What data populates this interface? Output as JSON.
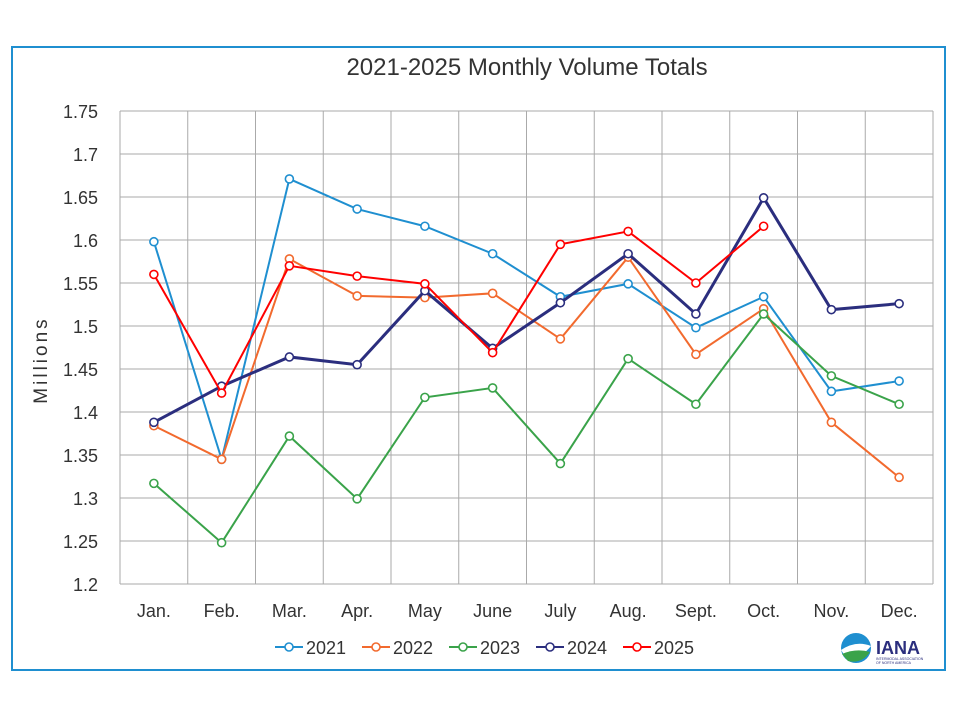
{
  "chart_data": {
    "type": "line",
    "title": "2021-2025 Monthly Volume Totals",
    "xlabel": "",
    "ylabel": "Millions",
    "ylim": [
      1.2,
      1.75
    ],
    "yticks": [
      "1.2",
      "1.25",
      "1.3",
      "1.35",
      "1.4",
      "1.45",
      "1.5",
      "1.55",
      "1.6",
      "1.65",
      "1.7",
      "1.75"
    ],
    "grid": true,
    "legend_position": "bottom",
    "categories": [
      "Jan.",
      "Feb.",
      "Mar.",
      "Apr.",
      "May",
      "June",
      "July",
      "Aug.",
      "Sept.",
      "Oct.",
      "Nov.",
      "Dec."
    ],
    "series": [
      {
        "name": "2021",
        "color": "#1f8fd0",
        "values": [
          1.598,
          1.345,
          1.671,
          1.636,
          1.616,
          1.584,
          1.534,
          1.549,
          1.498,
          1.534,
          1.424,
          1.436
        ]
      },
      {
        "name": "2022",
        "color": "#f26a2e",
        "values": [
          1.384,
          1.345,
          1.578,
          1.535,
          1.533,
          1.538,
          1.485,
          1.58,
          1.467,
          1.52,
          1.388,
          1.324
        ]
      },
      {
        "name": "2023",
        "color": "#3aa34a",
        "values": [
          1.317,
          1.248,
          1.372,
          1.299,
          1.417,
          1.428,
          1.34,
          1.462,
          1.409,
          1.514,
          1.442,
          1.409
        ]
      },
      {
        "name": "2024",
        "color": "#2b2e7e",
        "values": [
          1.388,
          1.43,
          1.464,
          1.455,
          1.541,
          1.474,
          1.527,
          1.584,
          1.514,
          1.649,
          1.519,
          1.526
        ]
      },
      {
        "name": "2025",
        "color": "#ff0000",
        "values": [
          1.56,
          1.422,
          1.57,
          1.558,
          1.549,
          1.469,
          1.595,
          1.61,
          1.55,
          1.616,
          null,
          null
        ]
      }
    ]
  },
  "logo": {
    "text": "IANA",
    "subtitle": "INTERMODAL ASSOCIATION OF NORTH AMERICA"
  }
}
